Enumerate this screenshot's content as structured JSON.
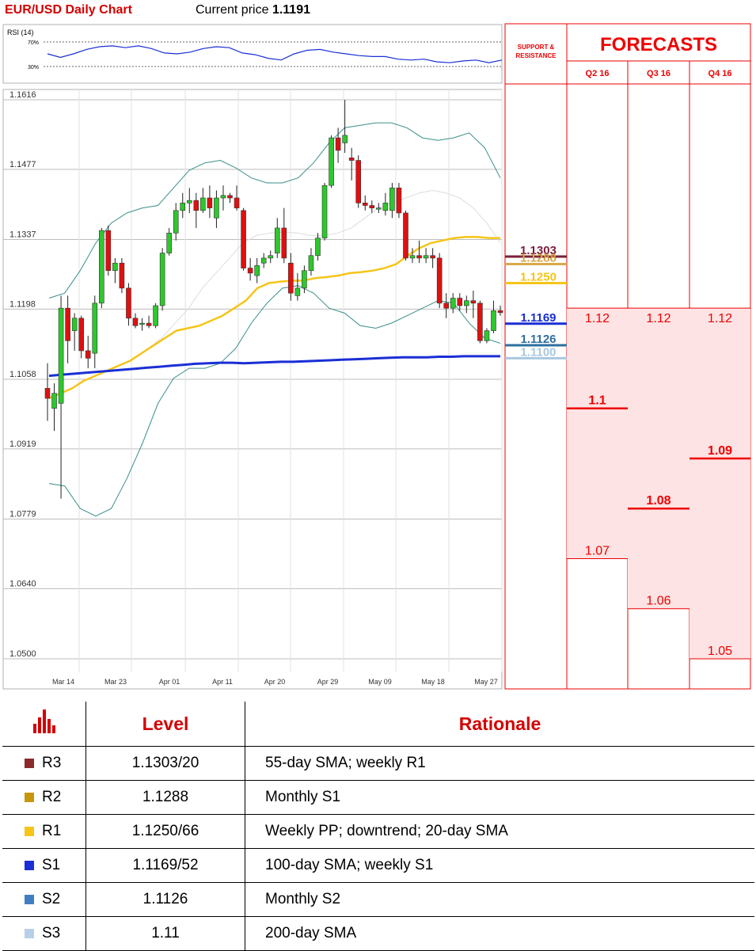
{
  "header": {
    "title": "EUR/USD Daily Chart",
    "price_label": "Current price",
    "price_value": "1.1191"
  },
  "rsi": {
    "label": "RSI (14)",
    "upper_label": "70%",
    "lower_label": "30%",
    "line": [
      50,
      42,
      50,
      60,
      66,
      68,
      64,
      68,
      62,
      52,
      50,
      54,
      62,
      66,
      64,
      52,
      48,
      40,
      36,
      50,
      58,
      60,
      54,
      50,
      46,
      44,
      44,
      38,
      36,
      38,
      32,
      30,
      34,
      36,
      30,
      36
    ]
  },
  "chart_data": {
    "type": "candlestick",
    "title": "EUR/USD Daily Chart",
    "ylim": [
      1.05,
      1.1616
    ],
    "y_ticks": [
      "1.1616",
      "1.1477",
      "1.1337",
      "1.1198",
      "1.1058",
      "1.0919",
      "1.0779",
      "1.0640",
      "1.0500"
    ],
    "x_ticks": [
      "Mar 14",
      "Mar 23",
      "Apr 01",
      "Apr 11",
      "Apr 20",
      "Apr 29",
      "May 09",
      "May 18",
      "May 27"
    ],
    "colors": {
      "up": "#2dc82d",
      "down": "#e01010",
      "sma20": "#f5c518",
      "sma100": "#1a2fd6",
      "bollinger": "#3a8f8a",
      "faint": "#dddddd"
    },
    "candles": [
      {
        "o": 1.104,
        "h": 1.109,
        "l": 1.0975,
        "c": 1.102
      },
      {
        "o": 1.1,
        "h": 1.105,
        "l": 1.0955,
        "c": 1.103
      },
      {
        "o": 1.101,
        "h": 1.1225,
        "l": 1.082,
        "c": 1.12
      },
      {
        "o": 1.12,
        "h": 1.1225,
        "l": 1.109,
        "c": 1.1135
      },
      {
        "o": 1.1155,
        "h": 1.119,
        "l": 1.1115,
        "c": 1.118
      },
      {
        "o": 1.118,
        "h": 1.1185,
        "l": 1.11,
        "c": 1.1115
      },
      {
        "o": 1.1115,
        "h": 1.1145,
        "l": 1.108,
        "c": 1.11
      },
      {
        "o": 1.111,
        "h": 1.1225,
        "l": 1.108,
        "c": 1.121
      },
      {
        "o": 1.121,
        "h": 1.136,
        "l": 1.12,
        "c": 1.1355
      },
      {
        "o": 1.1355,
        "h": 1.1365,
        "l": 1.1265,
        "c": 1.1275
      },
      {
        "o": 1.1275,
        "h": 1.13,
        "l": 1.125,
        "c": 1.129
      },
      {
        "o": 1.129,
        "h": 1.13,
        "l": 1.123,
        "c": 1.124
      },
      {
        "o": 1.124,
        "h": 1.125,
        "l": 1.1165,
        "c": 1.118
      },
      {
        "o": 1.118,
        "h": 1.119,
        "l": 1.116,
        "c": 1.1165
      },
      {
        "o": 1.117,
        "h": 1.118,
        "l": 1.1155,
        "c": 1.117
      },
      {
        "o": 1.117,
        "h": 1.1185,
        "l": 1.116,
        "c": 1.1165
      },
      {
        "o": 1.1165,
        "h": 1.121,
        "l": 1.116,
        "c": 1.1205
      },
      {
        "o": 1.1205,
        "h": 1.132,
        "l": 1.1195,
        "c": 1.131
      },
      {
        "o": 1.131,
        "h": 1.136,
        "l": 1.1305,
        "c": 1.135
      },
      {
        "o": 1.135,
        "h": 1.141,
        "l": 1.1335,
        "c": 1.1395
      },
      {
        "o": 1.1395,
        "h": 1.143,
        "l": 1.138,
        "c": 1.141
      },
      {
        "o": 1.141,
        "h": 1.144,
        "l": 1.139,
        "c": 1.1415
      },
      {
        "o": 1.1415,
        "h": 1.143,
        "l": 1.136,
        "c": 1.1395
      },
      {
        "o": 1.1395,
        "h": 1.144,
        "l": 1.139,
        "c": 1.142
      },
      {
        "o": 1.142,
        "h": 1.1445,
        "l": 1.138,
        "c": 1.14
      },
      {
        "o": 1.138,
        "h": 1.1435,
        "l": 1.136,
        "c": 1.142
      },
      {
        "o": 1.142,
        "h": 1.1445,
        "l": 1.1395,
        "c": 1.1425
      },
      {
        "o": 1.1425,
        "h": 1.143,
        "l": 1.141,
        "c": 1.142
      },
      {
        "o": 1.142,
        "h": 1.1445,
        "l": 1.1395,
        "c": 1.14
      },
      {
        "o": 1.1395,
        "h": 1.14,
        "l": 1.1275,
        "c": 1.128
      },
      {
        "o": 1.128,
        "h": 1.13,
        "l": 1.1255,
        "c": 1.127
      },
      {
        "o": 1.1265,
        "h": 1.13,
        "l": 1.125,
        "c": 1.1285
      },
      {
        "o": 1.129,
        "h": 1.131,
        "l": 1.128,
        "c": 1.13
      },
      {
        "o": 1.13,
        "h": 1.1315,
        "l": 1.129,
        "c": 1.1305
      },
      {
        "o": 1.131,
        "h": 1.138,
        "l": 1.13,
        "c": 1.136
      },
      {
        "o": 1.136,
        "h": 1.14,
        "l": 1.129,
        "c": 1.13
      },
      {
        "o": 1.129,
        "h": 1.131,
        "l": 1.1215,
        "c": 1.123
      },
      {
        "o": 1.1225,
        "h": 1.127,
        "l": 1.1215,
        "c": 1.124
      },
      {
        "o": 1.124,
        "h": 1.1285,
        "l": 1.123,
        "c": 1.1275
      },
      {
        "o": 1.1275,
        "h": 1.132,
        "l": 1.1265,
        "c": 1.1305
      },
      {
        "o": 1.1305,
        "h": 1.135,
        "l": 1.1295,
        "c": 1.134
      },
      {
        "o": 1.134,
        "h": 1.145,
        "l": 1.1335,
        "c": 1.1445
      },
      {
        "o": 1.1445,
        "h": 1.1545,
        "l": 1.144,
        "c": 1.154
      },
      {
        "o": 1.154,
        "h": 1.156,
        "l": 1.149,
        "c": 1.1515
      },
      {
        "o": 1.153,
        "h": 1.1616,
        "l": 1.151,
        "c": 1.1545
      },
      {
        "o": 1.15,
        "h": 1.152,
        "l": 1.1455,
        "c": 1.1495
      },
      {
        "o": 1.1495,
        "h": 1.1505,
        "l": 1.14,
        "c": 1.141
      },
      {
        "o": 1.141,
        "h": 1.1425,
        "l": 1.1395,
        "c": 1.1405
      },
      {
        "o": 1.1405,
        "h": 1.1415,
        "l": 1.139,
        "c": 1.14
      },
      {
        "o": 1.14,
        "h": 1.141,
        "l": 1.139,
        "c": 1.14
      },
      {
        "o": 1.1395,
        "h": 1.143,
        "l": 1.1385,
        "c": 1.141
      },
      {
        "o": 1.1395,
        "h": 1.145,
        "l": 1.138,
        "c": 1.144
      },
      {
        "o": 1.144,
        "h": 1.145,
        "l": 1.138,
        "c": 1.139
      },
      {
        "o": 1.139,
        "h": 1.1395,
        "l": 1.1295,
        "c": 1.13
      },
      {
        "o": 1.13,
        "h": 1.132,
        "l": 1.129,
        "c": 1.1305
      },
      {
        "o": 1.1305,
        "h": 1.1335,
        "l": 1.129,
        "c": 1.13
      },
      {
        "o": 1.13,
        "h": 1.132,
        "l": 1.129,
        "c": 1.1305
      },
      {
        "o": 1.1305,
        "h": 1.132,
        "l": 1.128,
        "c": 1.13
      },
      {
        "o": 1.13,
        "h": 1.131,
        "l": 1.12,
        "c": 1.121
      },
      {
        "o": 1.121,
        "h": 1.123,
        "l": 1.118,
        "c": 1.12
      },
      {
        "o": 1.12,
        "h": 1.123,
        "l": 1.119,
        "c": 1.122
      },
      {
        "o": 1.122,
        "h": 1.123,
        "l": 1.1195,
        "c": 1.1205
      },
      {
        "o": 1.1205,
        "h": 1.1225,
        "l": 1.119,
        "c": 1.1215
      },
      {
        "o": 1.1215,
        "h": 1.1235,
        "l": 1.118,
        "c": 1.121
      },
      {
        "o": 1.121,
        "h": 1.1215,
        "l": 1.113,
        "c": 1.1135
      },
      {
        "o": 1.1135,
        "h": 1.116,
        "l": 1.113,
        "c": 1.1155
      },
      {
        "o": 1.1155,
        "h": 1.1215,
        "l": 1.115,
        "c": 1.1195
      },
      {
        "o": 1.1195,
        "h": 1.1205,
        "l": 1.1185,
        "c": 1.1191
      }
    ],
    "sma20": [
      1.102,
      1.103,
      1.104,
      1.1055,
      1.1065,
      1.1075,
      1.1085,
      1.1095,
      1.111,
      1.1125,
      1.114,
      1.1155,
      1.116,
      1.1165,
      1.1175,
      1.1185,
      1.12,
      1.1215,
      1.124,
      1.125,
      1.1253,
      1.1255,
      1.1255,
      1.126,
      1.1262,
      1.1265,
      1.127,
      1.1272,
      1.1275,
      1.128,
      1.1288,
      1.1305,
      1.132,
      1.133,
      1.1335,
      1.134,
      1.1342,
      1.1342,
      1.134,
      1.134
    ],
    "sma100": [
      1.1065,
      1.1067,
      1.1069,
      1.1071,
      1.1073,
      1.1075,
      1.1077,
      1.1079,
      1.1081,
      1.1083,
      1.1085,
      1.1087,
      1.1089,
      1.109,
      1.1091,
      1.1091,
      1.109,
      1.1091,
      1.1092,
      1.1093,
      1.1093,
      1.1094,
      1.1095,
      1.1096,
      1.1097,
      1.1098,
      1.1099,
      1.11,
      1.1101,
      1.1102,
      1.1102,
      1.1102,
      1.1103,
      1.1103,
      1.1104,
      1.1104,
      1.1104,
      1.1104
    ],
    "bb_upper": [
      1.122,
      1.123,
      1.1275,
      1.133,
      1.137,
      1.139,
      1.14,
      1.1405,
      1.144,
      1.1475,
      1.149,
      1.1495,
      1.148,
      1.146,
      1.145,
      1.145,
      1.146,
      1.149,
      1.153,
      1.156,
      1.1565,
      1.157,
      1.157,
      1.156,
      1.154,
      1.1535,
      1.154,
      1.155,
      1.152,
      1.146
    ],
    "bb_lower": [
      1.085,
      1.0845,
      1.08,
      1.0785,
      1.08,
      1.086,
      1.093,
      1.101,
      1.106,
      1.108,
      1.108,
      1.109,
      1.112,
      1.117,
      1.121,
      1.124,
      1.1245,
      1.123,
      1.12,
      1.119,
      1.1165,
      1.116,
      1.117,
      1.1185,
      1.12,
      1.1215,
      1.121,
      1.117,
      1.114,
      1.113
    ],
    "bb_mid": [
      1.11,
      1.112,
      1.114,
      1.117,
      1.12,
      1.124,
      1.127,
      1.13,
      1.133,
      1.1345,
      1.135,
      1.1352,
      1.135,
      1.1345,
      1.1345,
      1.135,
      1.136,
      1.138,
      1.14,
      1.141,
      1.142,
      1.143,
      1.1435,
      1.143,
      1.142,
      1.14,
      1.137,
      1.133
    ],
    "levels": [
      {
        "value": 1.1303,
        "label": "1.1303",
        "color": "#7a1f3a"
      },
      {
        "value": 1.1288,
        "label": "1.1288",
        "color": "#d8a84a"
      },
      {
        "value": 1.125,
        "label": "1.1250",
        "color": "#f5c518"
      },
      {
        "value": 1.1169,
        "label": "1.1169",
        "color": "#1a2fd6"
      },
      {
        "value": 1.1126,
        "label": "1.1126",
        "color": "#2f6f9e"
      },
      {
        "value": 1.11,
        "label": "1.1100",
        "color": "#a8c8e0"
      }
    ]
  },
  "panel": {
    "support_label": "SUPPORT & RESISTANCE",
    "forecasts_title": "FORECASTS",
    "columns": [
      {
        "label": "Q2 16",
        "high": 1.12,
        "high_label": "1.12",
        "mid": 1.1,
        "mid_label": "1.1",
        "low": 1.07,
        "low_label": "1.07"
      },
      {
        "label": "Q3 16",
        "high": 1.12,
        "high_label": "1.12",
        "mid": 1.08,
        "mid_label": "1.08",
        "low": 1.06,
        "low_label": "1.06"
      },
      {
        "label": "Q4 16",
        "high": 1.12,
        "high_label": "1.12",
        "mid": 1.09,
        "mid_label": "1.09",
        "low": 1.05,
        "low_label": "1.05"
      }
    ]
  },
  "table": {
    "headers": {
      "level": "Level",
      "rationale": "Rationale"
    },
    "rows": [
      {
        "code": "R3",
        "level": "1.1303/20",
        "rationale": "55-day SMA; weekly R1",
        "color": "#8b2a2a"
      },
      {
        "code": "R2",
        "level": "1.1288",
        "rationale": "Monthly S1",
        "color": "#c8960a"
      },
      {
        "code": "R1",
        "level": "1.1250/66",
        "rationale": "Weekly PP; downtrend; 20-day SMA",
        "color": "#f5c518"
      },
      {
        "code": "S1",
        "level": "1.1169/52",
        "rationale": "100-day SMA; weekly S1",
        "color": "#1a2fd6"
      },
      {
        "code": "S2",
        "level": "1.1126",
        "rationale": "Monthly S2",
        "color": "#3f7fbf"
      },
      {
        "code": "S3",
        "level": "1.11",
        "rationale": "200-day SMA",
        "color": "#b8cfe8"
      }
    ]
  }
}
